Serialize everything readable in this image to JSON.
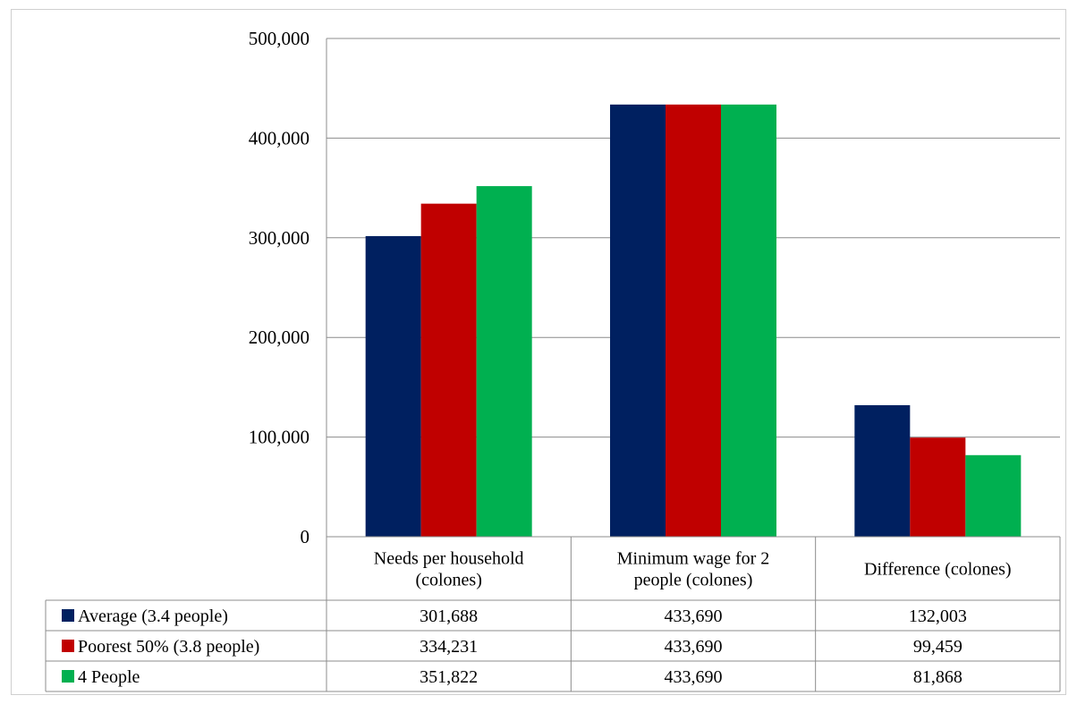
{
  "chart_data": {
    "type": "bar",
    "categories": [
      [
        "Needs per household",
        "(colones)"
      ],
      [
        "Minimum wage for 2",
        "people (colones)"
      ],
      [
        "Difference (colones)"
      ]
    ],
    "series": [
      {
        "name": "Average (3.4 people)",
        "color": "#002060",
        "values": [
          301688,
          433690,
          132003
        ],
        "labels": [
          "301,688",
          "433,690",
          "132,003"
        ]
      },
      {
        "name": "Poorest 50% (3.8 people)",
        "color": "#c00000",
        "values": [
          334231,
          433690,
          99459
        ],
        "labels": [
          "334,231",
          "433,690",
          "99,459"
        ]
      },
      {
        "name": "4 People",
        "color": "#00b050",
        "values": [
          351822,
          433690,
          81868
        ],
        "labels": [
          "351,822",
          "433,690",
          "81,868"
        ]
      }
    ],
    "ylim": [
      0,
      500000
    ],
    "yticks": [
      0,
      100000,
      200000,
      300000,
      400000,
      500000
    ],
    "ytick_labels": [
      "0",
      "100,000",
      "200,000",
      "300,000",
      "400,000",
      "500,000"
    ],
    "grid": true,
    "legend": "data-table",
    "title": "",
    "xlabel": "",
    "ylabel": ""
  }
}
